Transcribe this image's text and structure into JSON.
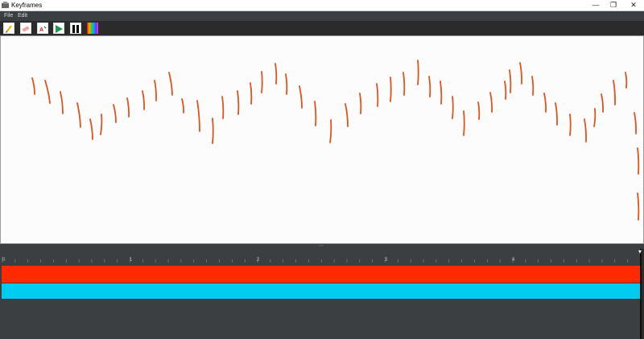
{
  "window": {
    "title": "Keyframes",
    "minimize": "—",
    "maximize": "❐",
    "close": "✕"
  },
  "menu": [
    "File",
    "Edit"
  ],
  "toolbar": {
    "tools": [
      "pencil-icon",
      "eraser-icon",
      "onion-skin-icon",
      "play-icon",
      "pause-icon",
      "color-palette-icon"
    ]
  },
  "timeline": {
    "ruler_labels": [
      "0",
      "1",
      "2",
      "3",
      "4"
    ],
    "tracks": [
      {
        "color": "#ff2a00"
      },
      {
        "color": "#00ccf0"
      }
    ]
  },
  "colors": {
    "stroke": "#e0531f",
    "canvas": "#fdfcfd",
    "panel": "#3c3f41"
  }
}
